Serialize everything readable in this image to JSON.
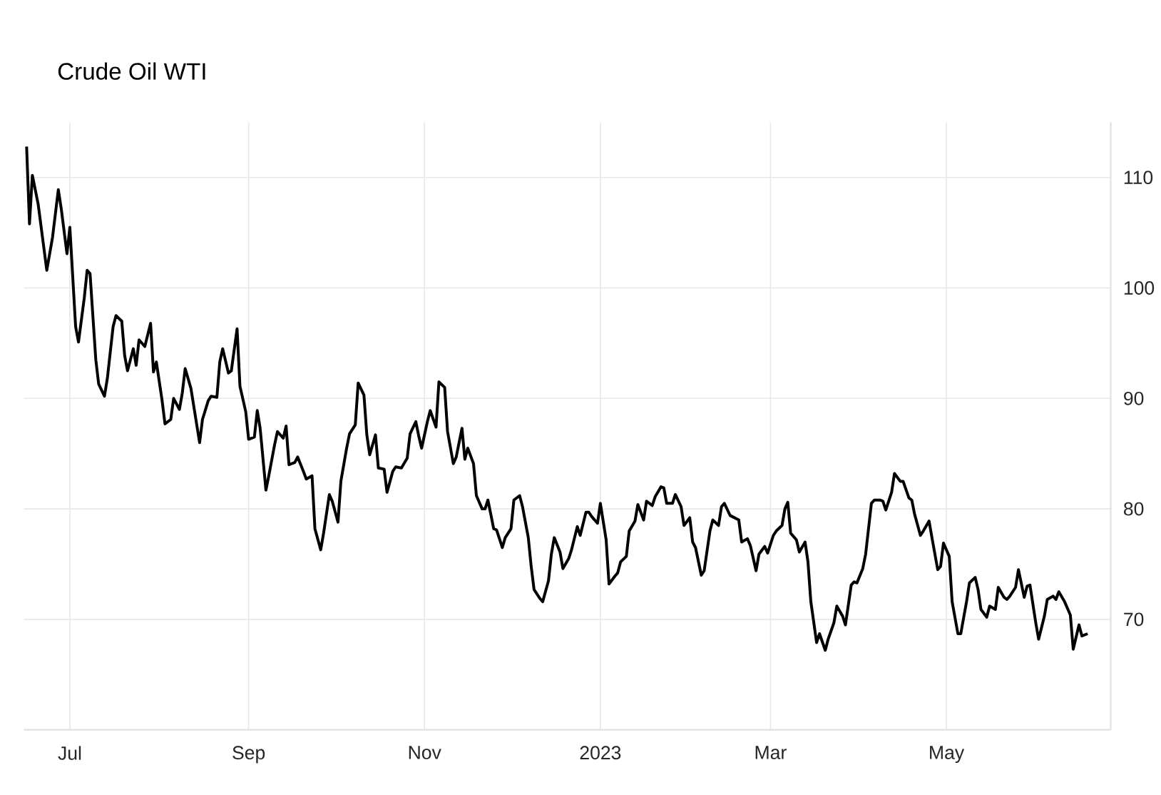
{
  "chart_data": {
    "type": "line",
    "title": "Crude Oil WTI",
    "x": [
      "2022-06-16",
      "2022-06-17",
      "2022-06-18",
      "2022-06-20",
      "2022-06-23",
      "2022-06-25",
      "2022-06-27",
      "2022-06-28",
      "2022-06-30",
      "2022-07-01",
      "2022-07-03",
      "2022-07-04",
      "2022-07-06",
      "2022-07-07",
      "2022-07-08",
      "2022-07-10",
      "2022-07-11",
      "2022-07-13",
      "2022-07-14",
      "2022-07-16",
      "2022-07-17",
      "2022-07-19",
      "2022-07-20",
      "2022-07-21",
      "2022-07-23",
      "2022-07-24",
      "2022-07-25",
      "2022-07-27",
      "2022-07-29",
      "2022-07-30",
      "2022-07-31",
      "2022-08-02",
      "2022-08-03",
      "2022-08-05",
      "2022-08-06",
      "2022-08-08",
      "2022-08-09",
      "2022-08-10",
      "2022-08-12",
      "2022-08-15",
      "2022-08-16",
      "2022-08-18",
      "2022-08-19",
      "2022-08-21",
      "2022-08-22",
      "2022-08-23",
      "2022-08-25",
      "2022-08-26",
      "2022-08-28",
      "2022-08-29",
      "2022-08-31",
      "2022-09-01",
      "2022-09-03",
      "2022-09-04",
      "2022-09-05",
      "2022-09-07",
      "2022-09-08",
      "2022-09-10",
      "2022-09-11",
      "2022-09-13",
      "2022-09-14",
      "2022-09-15",
      "2022-09-17",
      "2022-09-18",
      "2022-09-20",
      "2022-09-21",
      "2022-09-23",
      "2022-09-24",
      "2022-09-26",
      "2022-09-27",
      "2022-09-29",
      "2022-09-30",
      "2022-10-02",
      "2022-10-03",
      "2022-10-05",
      "2022-10-06",
      "2022-10-08",
      "2022-10-09",
      "2022-10-11",
      "2022-10-12",
      "2022-10-13",
      "2022-10-15",
      "2022-10-16",
      "2022-10-18",
      "2022-10-19",
      "2022-10-21",
      "2022-10-22",
      "2022-10-24",
      "2022-10-26",
      "2022-10-27",
      "2022-10-29",
      "2022-10-30",
      "2022-10-31",
      "2022-11-02",
      "2022-11-03",
      "2022-11-05",
      "2022-11-06",
      "2022-11-08",
      "2022-11-09",
      "2022-11-11",
      "2022-11-12",
      "2022-11-14",
      "2022-11-15",
      "2022-11-16",
      "2022-11-18",
      "2022-11-19",
      "2022-11-21",
      "2022-11-22",
      "2022-11-23",
      "2022-11-25",
      "2022-11-26",
      "2022-11-28",
      "2022-11-29",
      "2022-12-01",
      "2022-12-02",
      "2022-12-04",
      "2022-12-05",
      "2022-12-07",
      "2022-12-08",
      "2022-12-09",
      "2022-12-11",
      "2022-12-12",
      "2022-12-14",
      "2022-12-15",
      "2022-12-16",
      "2022-12-18",
      "2022-12-19",
      "2022-12-21",
      "2022-12-22",
      "2022-12-24",
      "2022-12-25",
      "2022-12-27",
      "2022-12-28",
      "2022-12-29",
      "2022-12-31",
      "2023-01-01",
      "2023-01-03",
      "2023-01-04",
      "2023-01-06",
      "2023-01-07",
      "2023-01-08",
      "2023-01-10",
      "2023-01-11",
      "2023-01-13",
      "2023-01-14",
      "2023-01-16",
      "2023-01-17",
      "2023-01-19",
      "2023-01-20",
      "2023-01-22",
      "2023-01-23",
      "2023-01-24",
      "2023-01-26",
      "2023-01-27",
      "2023-01-29",
      "2023-01-30",
      "2023-02-01",
      "2023-02-02",
      "2023-02-03",
      "2023-02-05",
      "2023-02-06",
      "2023-02-08",
      "2023-02-09",
      "2023-02-11",
      "2023-02-12",
      "2023-02-13",
      "2023-02-15",
      "2023-02-18",
      "2023-02-19",
      "2023-02-21",
      "2023-02-22",
      "2023-02-24",
      "2023-02-25",
      "2023-02-27",
      "2023-02-28",
      "2023-03-02",
      "2023-03-03",
      "2023-03-05",
      "2023-03-06",
      "2023-03-07",
      "2023-03-08",
      "2023-03-10",
      "2023-03-11",
      "2023-03-13",
      "2023-03-14",
      "2023-03-15",
      "2023-03-17",
      "2023-03-18",
      "2023-03-20",
      "2023-03-21",
      "2023-03-23",
      "2023-03-24",
      "2023-03-26",
      "2023-03-27",
      "2023-03-29",
      "2023-03-30",
      "2023-03-31",
      "2023-04-02",
      "2023-04-03",
      "2023-04-05",
      "2023-04-06",
      "2023-04-08",
      "2023-04-09",
      "2023-04-10",
      "2023-04-12",
      "2023-04-13",
      "2023-04-15",
      "2023-04-16",
      "2023-04-18",
      "2023-04-19",
      "2023-04-20",
      "2023-04-22",
      "2023-04-23",
      "2023-04-25",
      "2023-04-26",
      "2023-04-28",
      "2023-04-29",
      "2023-04-30",
      "2023-05-02",
      "2023-05-03",
      "2023-05-05",
      "2023-05-06",
      "2023-05-08",
      "2023-05-09",
      "2023-05-11",
      "2023-05-12",
      "2023-05-13",
      "2023-05-15",
      "2023-05-16",
      "2023-05-18",
      "2023-05-19",
      "2023-05-21",
      "2023-05-22",
      "2023-05-23",
      "2023-05-25",
      "2023-05-26",
      "2023-05-28",
      "2023-05-29",
      "2023-05-30",
      "2023-06-01",
      "2023-06-02",
      "2023-06-04",
      "2023-06-05",
      "2023-06-07",
      "2023-06-08",
      "2023-06-09",
      "2023-06-11",
      "2023-06-13",
      "2023-06-14",
      "2023-06-16",
      "2023-06-17",
      "2023-06-19"
    ],
    "values": [
      112.8,
      105.8,
      110.2,
      107.6,
      101.6,
      104.6,
      108.9,
      107.2,
      103.1,
      105.5,
      96.5,
      95.1,
      99.1,
      101.6,
      101.3,
      93.5,
      91.3,
      90.2,
      91.8,
      96.5,
      97.5,
      97.0,
      93.9,
      92.5,
      94.5,
      93.0,
      95.3,
      94.7,
      96.8,
      92.4,
      93.3,
      89.8,
      87.7,
      88.1,
      90.0,
      89.0,
      90.5,
      92.7,
      90.9,
      86.0,
      88.1,
      89.8,
      90.2,
      90.1,
      93.3,
      94.5,
      92.3,
      92.5,
      96.3,
      91.1,
      88.8,
      86.3,
      86.5,
      88.9,
      87.3,
      81.7,
      83.0,
      85.8,
      87.0,
      86.4,
      87.5,
      84.0,
      84.2,
      84.7,
      83.4,
      82.7,
      83.0,
      78.2,
      76.3,
      77.8,
      81.3,
      80.7,
      78.8,
      82.5,
      85.5,
      86.8,
      87.6,
      91.4,
      90.3,
      86.7,
      84.9,
      86.7,
      83.7,
      83.6,
      81.5,
      83.4,
      83.8,
      83.7,
      84.6,
      86.8,
      87.9,
      86.6,
      85.5,
      87.9,
      88.9,
      87.4,
      91.5,
      91.0,
      87.0,
      84.1,
      84.7,
      87.3,
      84.5,
      85.5,
      84.1,
      81.2,
      80.0,
      80.0,
      80.8,
      78.2,
      78.1,
      76.5,
      77.4,
      78.2,
      80.8,
      81.2,
      80.2,
      77.4,
      74.8,
      72.7,
      71.9,
      71.6,
      73.5,
      75.9,
      77.4,
      76.1,
      74.6,
      75.5,
      76.3,
      78.4,
      77.6,
      79.7,
      79.7,
      79.3,
      78.7,
      80.5,
      77.2,
      73.2,
      73.9,
      74.2,
      75.2,
      75.7,
      78.0,
      78.9,
      80.4,
      79.0,
      80.7,
      80.3,
      81.1,
      82.0,
      81.9,
      80.5,
      80.5,
      81.3,
      80.2,
      78.5,
      79.2,
      77.0,
      76.5,
      74.0,
      74.4,
      78.0,
      79.0,
      78.5,
      80.2,
      80.5,
      79.4,
      79.0,
      77.0,
      77.3,
      76.7,
      74.4,
      75.9,
      76.6,
      76.0,
      77.6,
      78.0,
      78.5,
      80.0,
      80.6,
      77.8,
      77.2,
      76.1,
      77.0,
      75.2,
      71.6,
      67.9,
      68.7,
      67.2,
      68.2,
      69.7,
      71.2,
      70.3,
      69.5,
      73.1,
      73.4,
      73.3,
      74.6,
      75.9,
      80.5,
      80.8,
      80.8,
      80.7,
      79.9,
      81.5,
      83.2,
      82.5,
      82.5,
      81.0,
      80.8,
      79.5,
      77.6,
      78.0,
      78.9,
      77.4,
      74.5,
      74.8,
      76.9,
      75.7,
      71.6,
      68.7,
      68.7,
      71.6,
      73.3,
      73.8,
      72.7,
      70.9,
      70.2,
      71.2,
      70.9,
      72.9,
      72.0,
      71.8,
      72.1,
      72.9,
      74.5,
      72.0,
      73.0,
      73.1,
      69.7,
      68.2,
      70.3,
      71.8,
      72.1,
      71.8,
      72.5,
      71.6,
      70.4,
      67.3,
      69.5,
      68.5,
      68.7
    ],
    "color": "#000000",
    "xlim": [
      "2022-06-15",
      "2023-06-27"
    ],
    "xticks": [
      {
        "value": "2022-07-01",
        "label": "Jul"
      },
      {
        "value": "2022-09-01",
        "label": "Sep"
      },
      {
        "value": "2022-11-01",
        "label": "Nov"
      },
      {
        "value": "2023-01-01",
        "label": "2023"
      },
      {
        "value": "2023-03-01",
        "label": "Mar"
      },
      {
        "value": "2023-05-01",
        "label": "May"
      }
    ],
    "ylim": [
      60,
      115
    ],
    "yticks": [
      70,
      80,
      90,
      100,
      110
    ],
    "grid": true,
    "line_style": "solid"
  }
}
